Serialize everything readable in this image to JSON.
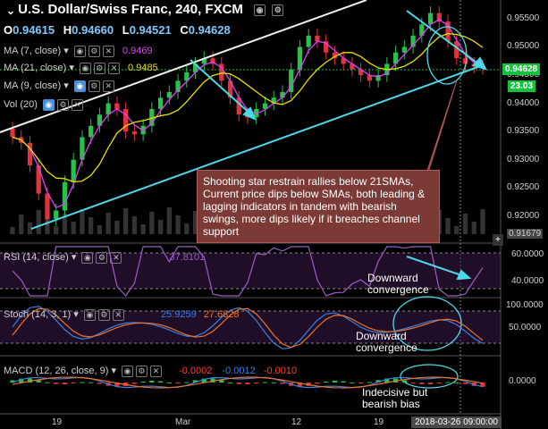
{
  "header": {
    "symbol_title": "U.S. Dollar/Swiss Franc, 240, FXCM",
    "ohlc": {
      "open_label": "O",
      "open": "0.94615",
      "high_label": "H",
      "high": "0.94660",
      "low_label": "L",
      "low": "0.94521",
      "close_label": "C",
      "close": "0.94628"
    },
    "indicators": [
      {
        "label": "MA (7, close)",
        "value": "0.9469",
        "color": "#e040fb"
      },
      {
        "label": "MA (21, close)",
        "value": "0.9485",
        "color": "#e8e000"
      },
      {
        "label": "MA (9, close)",
        "value": "",
        "color": "#4fc3f7"
      },
      {
        "label": "Vol (20)",
        "value": "",
        "color": "#cccccc"
      }
    ]
  },
  "price_axis": {
    "ticks": [
      "0.95500",
      "0.95000",
      "0.94500",
      "0.94000",
      "0.93500",
      "0.93000",
      "0.92500",
      "0.92000",
      "0.91679"
    ],
    "tick_values": [
      0.955,
      0.95,
      0.945,
      0.94,
      0.935,
      0.93,
      0.925,
      0.92,
      0.91679
    ],
    "current_price": "0.94628",
    "current_color": "#16c23d",
    "sub_tag": "23.03"
  },
  "callout": {
    "text": "Shooting star restrain rallies below 21SMAs, Current price dips below SMAs, both leading & lagging indicators in tandem with bearish swings, more dips likely if it breaches channel support"
  },
  "rsi": {
    "label": "RSI (14, close)",
    "value": "37.8101",
    "ticks": [
      "60.0000",
      "40.0000"
    ],
    "note": "Downward convergence"
  },
  "stoch": {
    "label": "Stoch (14, 3, 1)",
    "k": "25.9259",
    "d": "27.6828",
    "ticks": [
      "100.0000",
      "50.0000"
    ],
    "note": "Downward convergence"
  },
  "macd": {
    "label": "MACD (12, 26, close, 9)",
    "hist": "-0.0002",
    "macd": "-0.0012",
    "signal": "-0.0010",
    "ticks": [
      "0.0000"
    ],
    "note": "Indecisive but bearish bias"
  },
  "time_axis": {
    "labels": [
      "19",
      "Mar",
      "12",
      "19"
    ],
    "current_date": "2018-03-26 09:00:00"
  },
  "chart_data": {
    "type": "candlestick",
    "title": "U.S. Dollar/Swiss Franc, 240, FXCM",
    "ylim": [
      0.9168,
      0.958
    ],
    "x_categories": [
      "19",
      "Mar",
      "12",
      "19"
    ],
    "close_series": [
      0.934,
      0.933,
      0.929,
      0.924,
      0.9195,
      0.921,
      0.926,
      0.93,
      0.934,
      0.936,
      0.938,
      0.94,
      0.939,
      0.935,
      0.9345,
      0.936,
      0.939,
      0.941,
      0.942,
      0.944,
      0.9455,
      0.947,
      0.948,
      0.947,
      0.944,
      0.941,
      0.938,
      0.9375,
      0.939,
      0.94,
      0.941,
      0.942,
      0.946,
      0.95,
      0.952,
      0.951,
      0.949,
      0.948,
      0.947,
      0.946,
      0.945,
      0.944,
      0.945,
      0.947,
      0.949,
      0.95,
      0.952,
      0.954,
      0.956,
      0.9545,
      0.951,
      0.948,
      0.947,
      0.9465,
      0.9463
    ],
    "series": [
      {
        "name": "MA (7, close)",
        "color": "#e040fb"
      },
      {
        "name": "MA (21, close)",
        "color": "#e8e000"
      }
    ],
    "channel": {
      "support": [
        [
          0,
          0.919
        ],
        [
          54,
          0.9455
        ]
      ],
      "resistance": [
        [
          0,
          0.938
        ],
        [
          24,
          0.958
        ]
      ]
    }
  }
}
